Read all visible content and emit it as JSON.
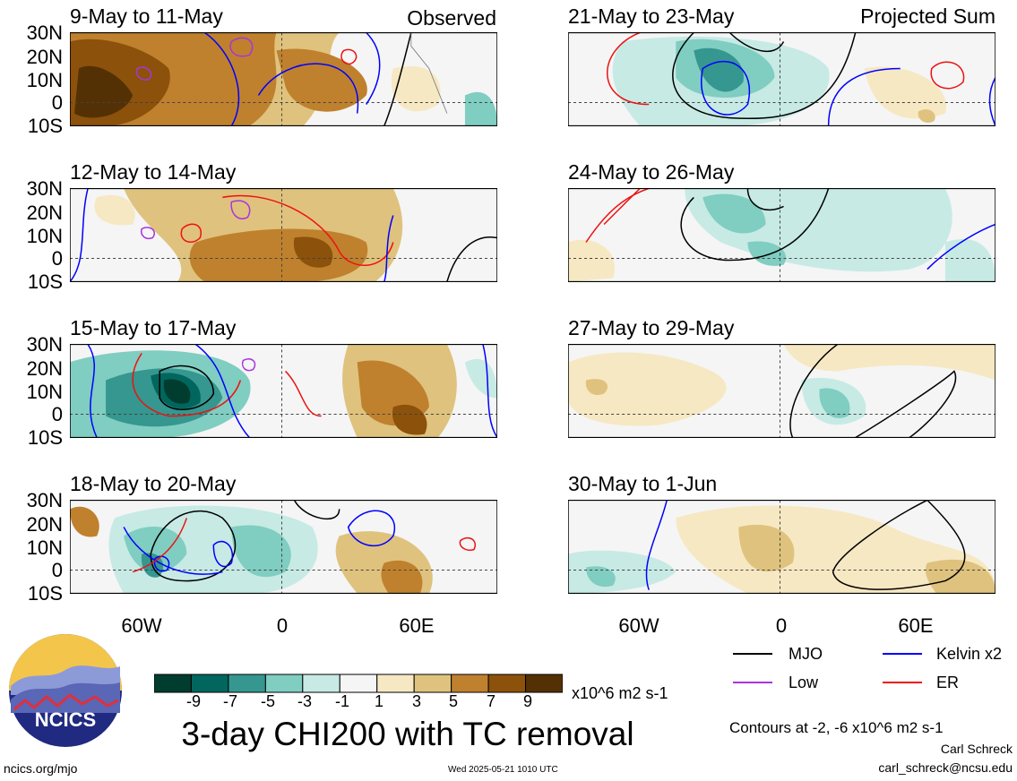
{
  "panels": [
    {
      "id": "p1",
      "date": "9-May to 11-May",
      "tag": "Observed"
    },
    {
      "id": "p2",
      "date": "12-May to 14-May",
      "tag": ""
    },
    {
      "id": "p3",
      "date": "15-May to 17-May",
      "tag": ""
    },
    {
      "id": "p4",
      "date": "18-May to 20-May",
      "tag": ""
    },
    {
      "id": "p5",
      "date": "21-May to 23-May",
      "tag": "Projected Sum"
    },
    {
      "id": "p6",
      "date": "24-May to 26-May",
      "tag": ""
    },
    {
      "id": "p7",
      "date": "27-May to 29-May",
      "tag": ""
    },
    {
      "id": "p8",
      "date": "30-May to 1-Jun",
      "tag": ""
    }
  ],
  "lat_labels": [
    "30N",
    "20N",
    "10N",
    "0",
    "10S"
  ],
  "lon_labels": [
    "60W",
    "0",
    "60E"
  ],
  "colorbar": {
    "ticks": [
      "-9",
      "-7",
      "-5",
      "-3",
      "-1",
      "1",
      "3",
      "5",
      "7",
      "9"
    ],
    "colors": [
      "#003d2e",
      "#01665e",
      "#35978f",
      "#80cdc1",
      "#c7eae5",
      "#f5f5f5",
      "#f6e8c3",
      "#dfc27d",
      "#bf812d",
      "#8c510a",
      "#543005"
    ],
    "units": "x10^6 m2 s-1"
  },
  "main_title": "3-day CHI200 with TC removal",
  "legend": {
    "items": [
      {
        "label": "MJO",
        "color": "#000000"
      },
      {
        "label": "Kelvin x2",
        "color": "#0000ff"
      },
      {
        "label": "Low",
        "color": "#aa33dd"
      },
      {
        "label": "ER",
        "color": "#ee1111"
      }
    ],
    "contours_note": "Contours at -2, -6 x10^6 m2 s-1"
  },
  "credits": {
    "author": "Carl Schreck",
    "email": "carl_schreck@ncsu.edu",
    "url": "ncics.org/mjo",
    "timestamp": "Wed 2025-05-21 1010 UTC",
    "logo_text": "NCICS"
  }
}
